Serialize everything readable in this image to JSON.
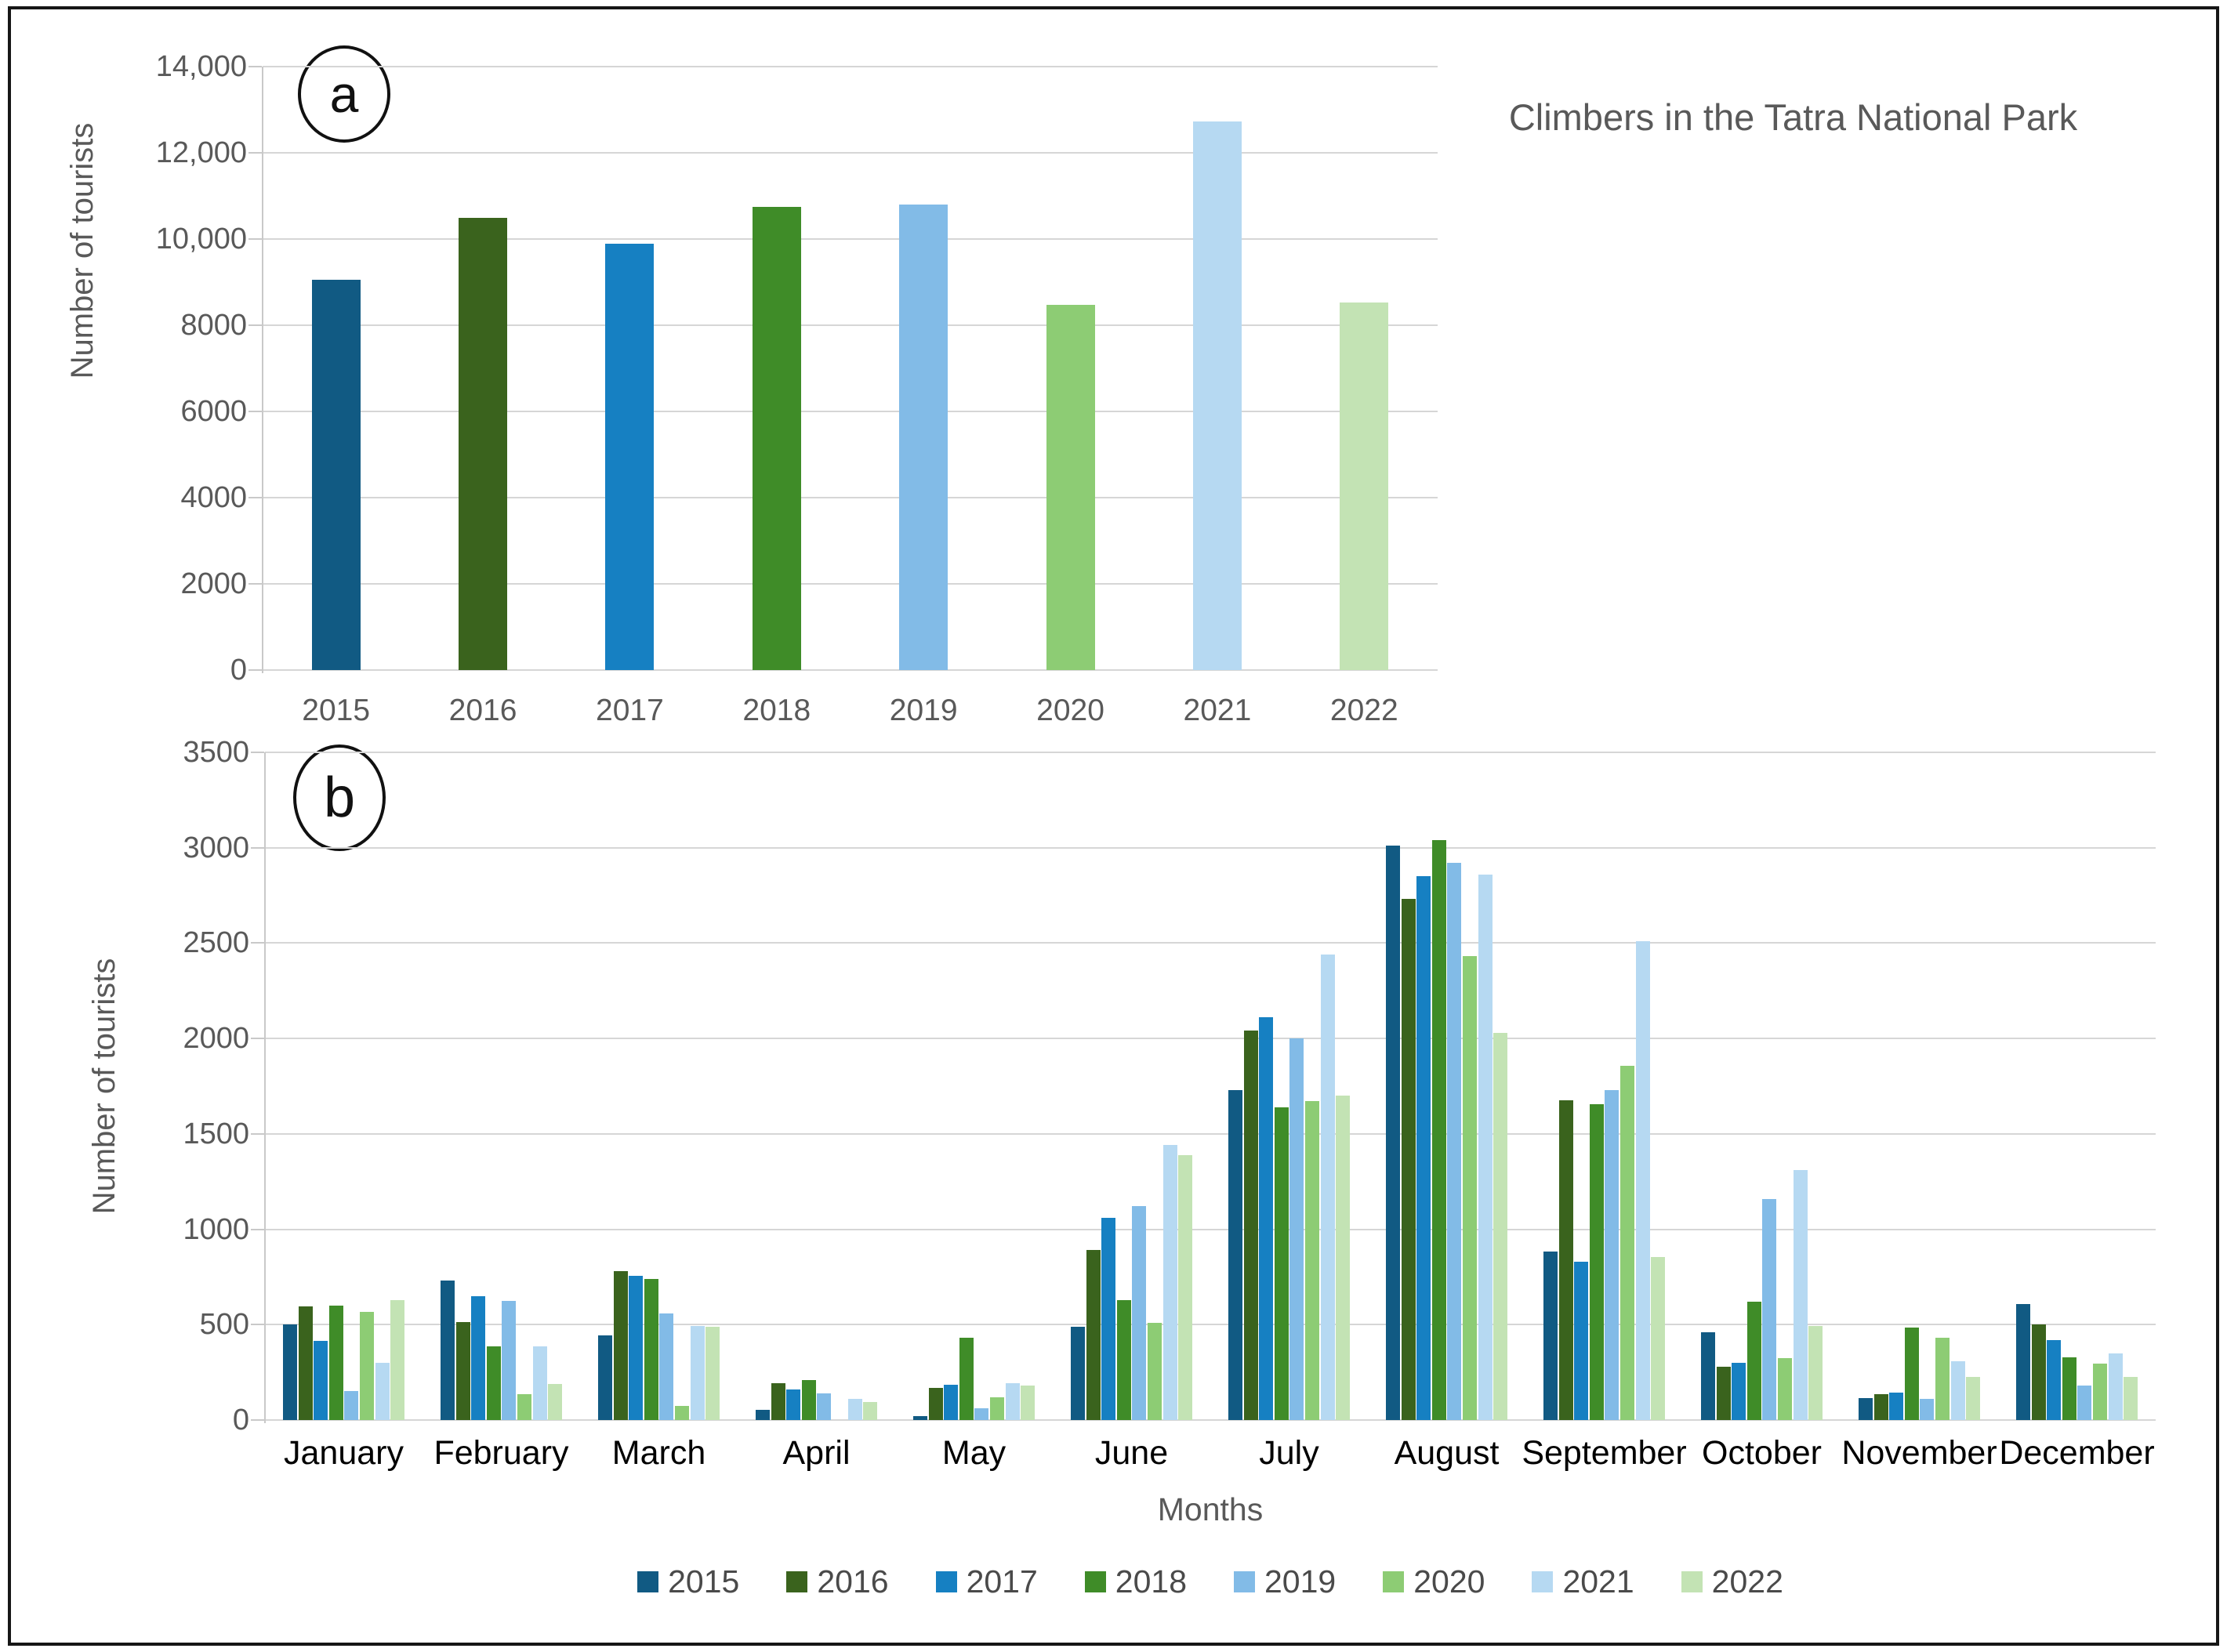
{
  "panel_a": {
    "label": "a",
    "title": "Climbers in the Tatra National Park",
    "ylabel": "Number of tourists"
  },
  "panel_b": {
    "label": "b",
    "ylabel": "Number of tourists",
    "xlabel": "Months"
  },
  "chart_data": [
    {
      "type": "bar",
      "panel": "a",
      "title": "Climbers in the Tatra National Park",
      "ylabel": "Number of tourists",
      "categories": [
        "2015",
        "2016",
        "2017",
        "2018",
        "2019",
        "2020",
        "2021",
        "2022"
      ],
      "values": [
        9050,
        10500,
        9900,
        10750,
        10800,
        8480,
        12720,
        8530
      ],
      "bar_colors": [
        "#115A83",
        "#3A631D",
        "#1680C2",
        "#3F8C28",
        "#82BBE7",
        "#8DCC74",
        "#B6D9F2",
        "#C3E3B4"
      ],
      "ylim": [
        0,
        14000
      ],
      "ytick_labels": [
        "14,000",
        "12,000",
        "10,000",
        "8000",
        "6000",
        "4000",
        "2000",
        "0"
      ],
      "grid": true,
      "legend": false
    },
    {
      "type": "bar",
      "panel": "b",
      "ylabel": "Number of tourists",
      "xlabel": "Months",
      "categories": [
        "January",
        "February",
        "March",
        "April",
        "May",
        "June",
        "July",
        "August",
        "September",
        "October",
        "November",
        "December"
      ],
      "series": [
        {
          "name": "2015",
          "color": "#115A83",
          "values": [
            500,
            730,
            445,
            55,
            20,
            490,
            1730,
            3010,
            885,
            460,
            115,
            610
          ]
        },
        {
          "name": "2016",
          "color": "#3A631D",
          "values": [
            595,
            515,
            780,
            195,
            170,
            890,
            2040,
            2730,
            1675,
            280,
            135,
            500
          ]
        },
        {
          "name": "2017",
          "color": "#1680C2",
          "values": [
            415,
            650,
            755,
            160,
            185,
            1060,
            2110,
            2850,
            830,
            300,
            145,
            420
          ]
        },
        {
          "name": "2018",
          "color": "#3F8C28",
          "values": [
            600,
            385,
            740,
            210,
            430,
            630,
            1640,
            3040,
            1655,
            620,
            485,
            330
          ]
        },
        {
          "name": "2019",
          "color": "#82BBE7",
          "values": [
            150,
            625,
            560,
            140,
            60,
            1120,
            2000,
            2920,
            1730,
            1160,
            110,
            180
          ]
        },
        {
          "name": "2020",
          "color": "#8DCC74",
          "values": [
            565,
            135,
            75,
            0,
            120,
            510,
            1670,
            2430,
            1855,
            325,
            430,
            295
          ]
        },
        {
          "name": "2021",
          "color": "#B6D9F2",
          "values": [
            300,
            385,
            495,
            110,
            195,
            1440,
            2440,
            2860,
            2510,
            1310,
            310,
            350
          ]
        },
        {
          "name": "2022",
          "color": "#C3E3B4",
          "values": [
            630,
            190,
            490,
            95,
            180,
            1390,
            1700,
            2030,
            855,
            495,
            225,
            225
          ]
        }
      ],
      "ylim": [
        0,
        3500
      ],
      "ytick_labels": [
        "3500",
        "3000",
        "2500",
        "2000",
        "1500",
        "1000",
        "500",
        "0"
      ],
      "grid": true,
      "legend_position": "bottom"
    }
  ]
}
